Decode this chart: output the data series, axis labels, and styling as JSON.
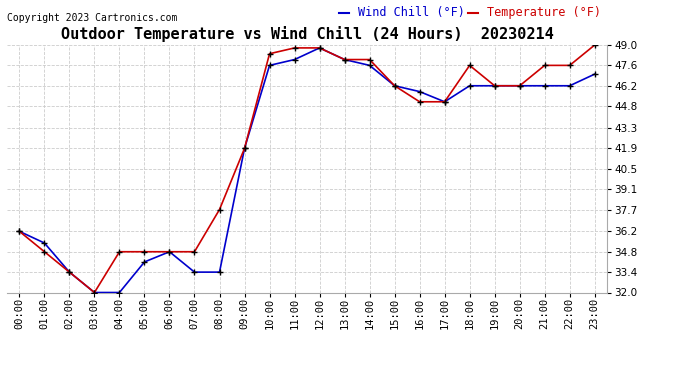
{
  "title": "Outdoor Temperature vs Wind Chill (24 Hours)  20230214",
  "copyright": "Copyright 2023 Cartronics.com",
  "legend_wind_chill": "Wind Chill (°F)",
  "legend_temperature": "Temperature (°F)",
  "hours": [
    0,
    1,
    2,
    3,
    4,
    5,
    6,
    7,
    8,
    9,
    10,
    11,
    12,
    13,
    14,
    15,
    16,
    17,
    18,
    19,
    20,
    21,
    22,
    23
  ],
  "temperature": [
    36.2,
    34.8,
    33.4,
    32.0,
    34.8,
    34.8,
    34.8,
    34.8,
    37.7,
    41.9,
    48.4,
    48.8,
    48.8,
    48.0,
    48.0,
    46.2,
    45.1,
    45.1,
    47.6,
    46.2,
    46.2,
    47.6,
    47.6,
    49.0
  ],
  "wind_chill": [
    36.2,
    35.4,
    33.4,
    32.0,
    32.0,
    34.1,
    34.8,
    33.4,
    33.4,
    41.9,
    47.6,
    48.0,
    48.8,
    48.0,
    47.6,
    46.2,
    45.8,
    45.1,
    46.2,
    46.2,
    46.2,
    46.2,
    46.2,
    47.0
  ],
  "ylim_min": 32.0,
  "ylim_max": 49.0,
  "yticks": [
    32.0,
    33.4,
    34.8,
    36.2,
    37.7,
    39.1,
    40.5,
    41.9,
    43.3,
    44.8,
    46.2,
    47.6,
    49.0
  ],
  "bg_color": "#ffffff",
  "grid_color": "#cccccc",
  "temp_color": "#cc0000",
  "wind_color": "#0000cc",
  "marker_color": "#000000",
  "title_fontsize": 11,
  "tick_fontsize": 7.5,
  "copyright_fontsize": 7,
  "legend_fontsize": 8.5
}
